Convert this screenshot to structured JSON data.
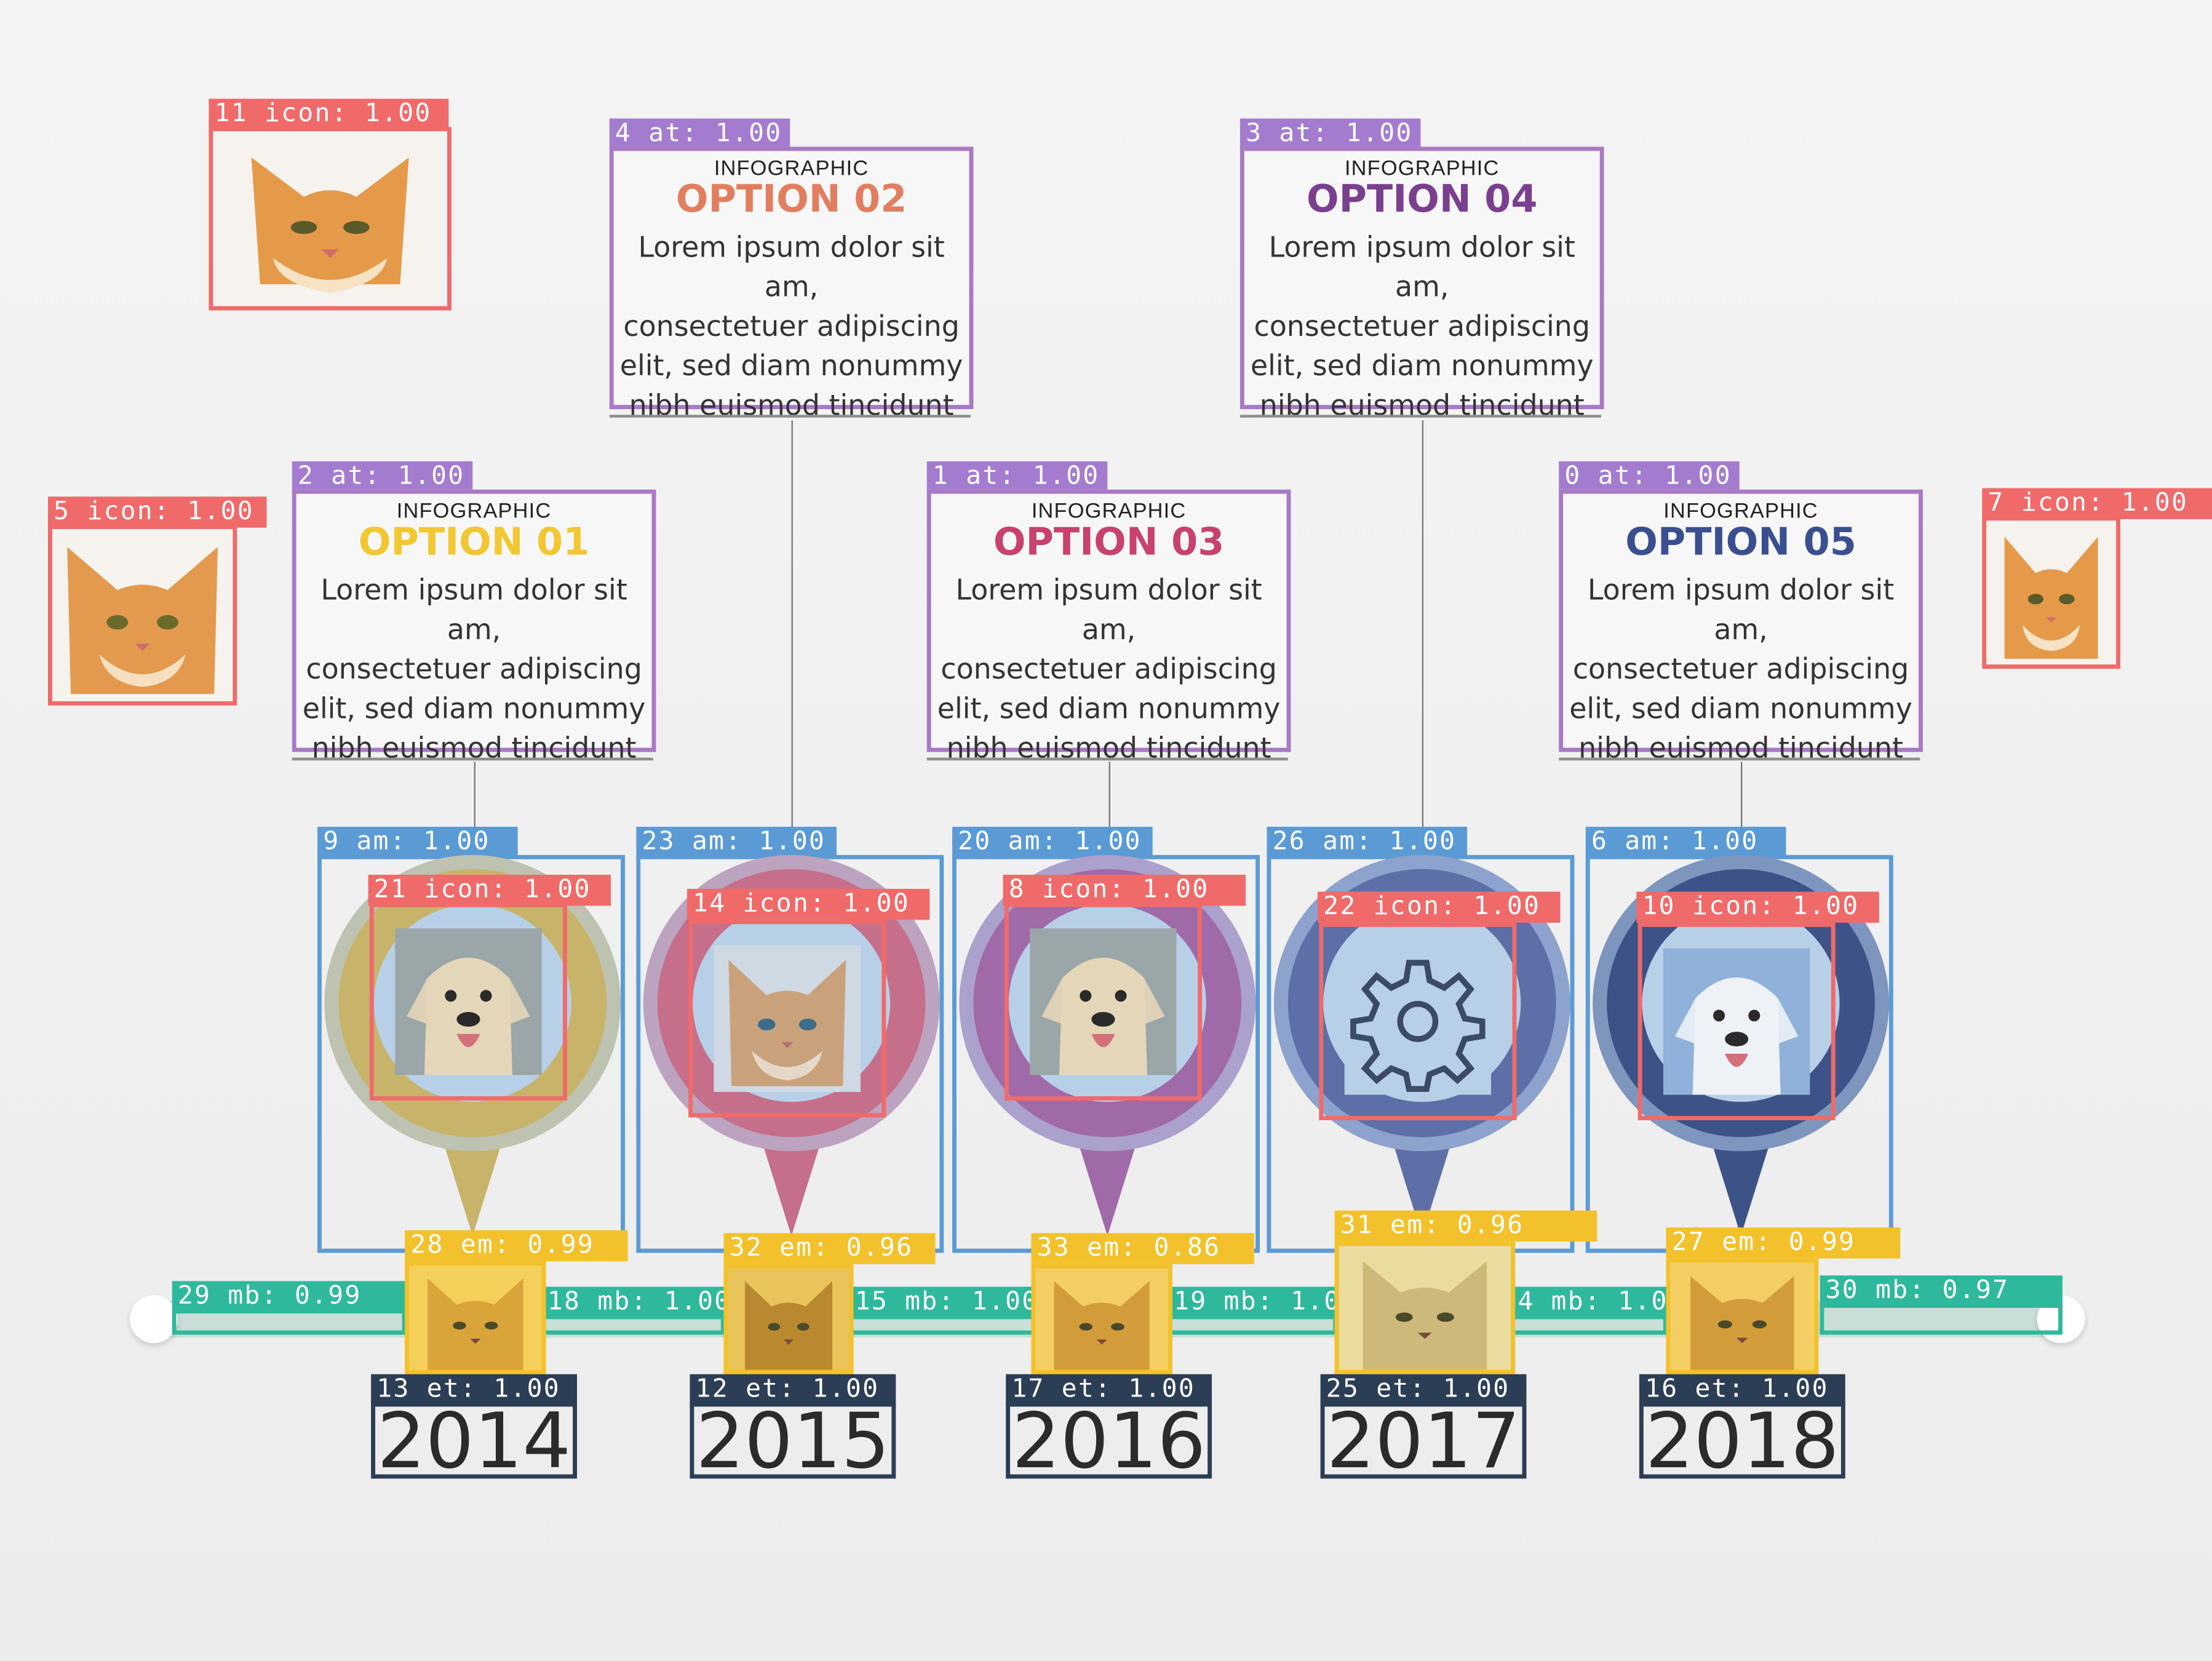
{
  "colors": {
    "det_icon": "#f06a6a",
    "det_at": "#a47ccf",
    "det_am": "#5b9bd5",
    "det_em": "#f3c12b",
    "det_mb": "#2fb99c",
    "det_et": "#2c3e55",
    "option01": "#f2c730",
    "option02": "#e27e5f",
    "option03": "#c8416f",
    "option04": "#7a3f8e",
    "option05": "#3a4f8f"
  },
  "options": [
    {
      "kicker": "INFOGRAPHIC",
      "title": "OPTION 01",
      "body": [
        "Lorem ipsum dolor sit am,",
        "consectetuer adipiscing",
        "elit, sed diam nonummy",
        "nibh euismod tincidunt"
      ],
      "label": "2 at: 1.00"
    },
    {
      "kicker": "INFOGRAPHIC",
      "title": "OPTION 02",
      "body": [
        "Lorem ipsum dolor sit am,",
        "consectetuer adipiscing",
        "elit, sed diam nonummy",
        "nibh euismod tincidunt"
      ],
      "label": "4 at: 1.00"
    },
    {
      "kicker": "INFOGRAPHIC",
      "title": "OPTION 03",
      "body": [
        "Lorem ipsum dolor sit am,",
        "consectetuer adipiscing",
        "elit, sed diam nonummy",
        "nibh euismod tincidunt"
      ],
      "label": "1 at: 1.00"
    },
    {
      "kicker": "INFOGRAPHIC",
      "title": "OPTION 04",
      "body": [
        "Lorem ipsum dolor sit am,",
        "consectetuer adipiscing",
        "elit, sed diam nonummy",
        "nibh euismod tincidunt"
      ],
      "label": "3 at: 1.00"
    },
    {
      "kicker": "INFOGRAPHIC",
      "title": "OPTION 05",
      "body": [
        "Lorem ipsum dolor sit am,",
        "consectetuer adipiscing",
        "elit, sed diam nonummy",
        "nibh euismod tincidunt"
      ],
      "label": "0 at: 1.00"
    }
  ],
  "pins": [
    {
      "am_label": "9 am: 1.00",
      "icon_label": "21 icon: 1.00",
      "icon": "dog-icon"
    },
    {
      "am_label": "23 am: 1.00",
      "icon_label": "14 icon: 1.00",
      "icon": "cat-icon"
    },
    {
      "am_label": "20 am: 1.00",
      "icon_label": "8 icon: 1.00",
      "icon": "dog-icon"
    },
    {
      "am_label": "26 am: 1.00",
      "icon_label": "22 icon: 1.00",
      "icon": "gear-icon"
    },
    {
      "am_label": "6 am: 1.00",
      "icon_label": "10 icon: 1.00",
      "icon": "dog-icon"
    }
  ],
  "em_labels": [
    "28 em: 0.99",
    "32 em: 0.96",
    "33 em: 0.86",
    "31 em: 0.96",
    "27 em: 0.99"
  ],
  "mb_labels": [
    "29 mb: 0.99",
    "18 mb: 1.00",
    "15 mb: 1.00",
    "19 mb: 1.00",
    "24 mb: 1.00",
    "30 mb: 0.97"
  ],
  "years": [
    {
      "year": "2014",
      "label": "13 et: 1.00"
    },
    {
      "year": "2015",
      "label": "12 et: 1.00"
    },
    {
      "year": "2016",
      "label": "17 et: 1.00"
    },
    {
      "year": "2017",
      "label": "25 et: 1.00"
    },
    {
      "year": "2018",
      "label": "16 et: 1.00"
    }
  ],
  "corner_icons": [
    {
      "label": "11 icon: 1.00",
      "icon": "cat-icon"
    },
    {
      "label": "5 icon: 1.00",
      "icon": "cat-icon"
    },
    {
      "label": "7 icon: 1.00",
      "icon": "cat-icon"
    }
  ]
}
